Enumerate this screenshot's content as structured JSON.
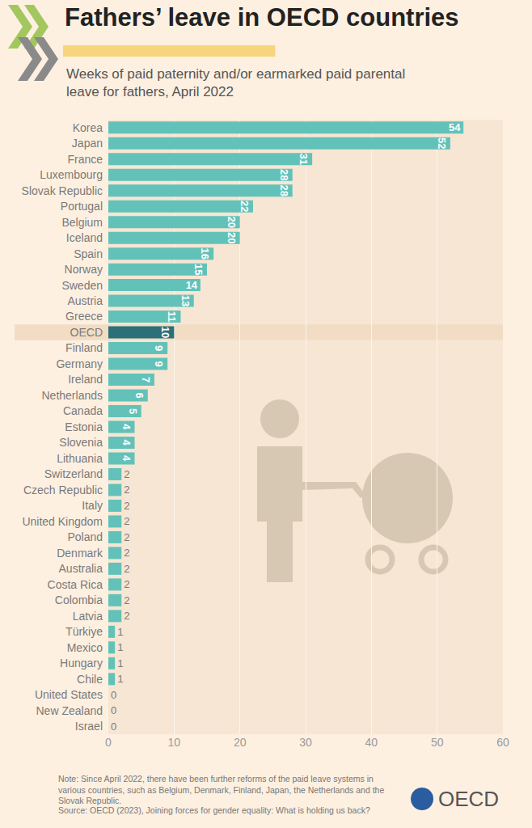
{
  "chart_data": {
    "type": "bar",
    "title": "Fathers’ leave in OECD countries",
    "subtitle": "Weeks of paid paternity and/or earmarked paid parental leave for fathers, April 2022",
    "categories": [
      "Korea",
      "Japan",
      "France",
      "Luxembourg",
      "Slovak Republic",
      "Portugal",
      "Belgium",
      "Iceland",
      "Spain",
      "Norway",
      "Sweden",
      "Austria",
      "Greece",
      "OECD",
      "Finland",
      "Germany",
      "Ireland",
      "Netherlands",
      "Canada",
      "Estonia",
      "Slovenia",
      "Lithuania",
      "Switzerland",
      "Czech Republic",
      "Italy",
      "United Kingdom",
      "Poland",
      "Denmark",
      "Australia",
      "Costa Rica",
      "Colombia",
      "Latvia",
      "Türkiye",
      "Mexico",
      "Hungary",
      "Chile",
      "United States",
      "New Zealand",
      "Israel"
    ],
    "values": [
      54,
      52,
      31,
      28,
      28,
      22,
      20,
      20,
      16,
      15,
      14,
      13,
      11,
      10,
      9,
      9,
      7,
      6,
      5,
      4,
      4,
      4,
      2,
      2,
      2,
      2,
      2,
      2,
      2,
      2,
      2,
      2,
      1,
      1,
      1,
      1,
      0,
      0,
      0
    ],
    "colors": [
      "#62c2b9",
      "#62c2b9",
      "#62c2b9",
      "#62c2b9",
      "#62c2b9",
      "#62c2b9",
      "#62c2b9",
      "#62c2b9",
      "#62c2b9",
      "#62c2b9",
      "#62c2b9",
      "#62c2b9",
      "#62c2b9",
      "#2b6f79",
      "#62c2b9",
      "#62c2b9",
      "#62c2b9",
      "#62c2b9",
      "#62c2b9",
      "#62c2b9",
      "#62c2b9",
      "#62c2b9",
      "#62c2b9",
      "#62c2b9",
      "#62c2b9",
      "#62c2b9",
      "#62c2b9",
      "#62c2b9",
      "#62c2b9",
      "#62c2b9",
      "#62c2b9",
      "#62c2b9",
      "#62c2b9",
      "#62c2b9",
      "#62c2b9",
      "#62c2b9",
      "#62c2b9",
      "#62c2b9",
      "#62c2b9"
    ],
    "orientation": "horizontal",
    "data_labels": true,
    "xlim": [
      0,
      60
    ],
    "xticks": [
      0,
      10,
      20,
      30,
      40,
      50,
      60
    ],
    "grid": true,
    "note": "Note: Since April 2022, there have been further reforms of the paid leave systems in various countries, such as Belgium, Denmark, Finland, Japan, the Netherlands and the Slovak Republic.",
    "source": "Source: OECD (2023), Joining forces for gender equality: What is holding us back?",
    "logo": "OECD"
  }
}
